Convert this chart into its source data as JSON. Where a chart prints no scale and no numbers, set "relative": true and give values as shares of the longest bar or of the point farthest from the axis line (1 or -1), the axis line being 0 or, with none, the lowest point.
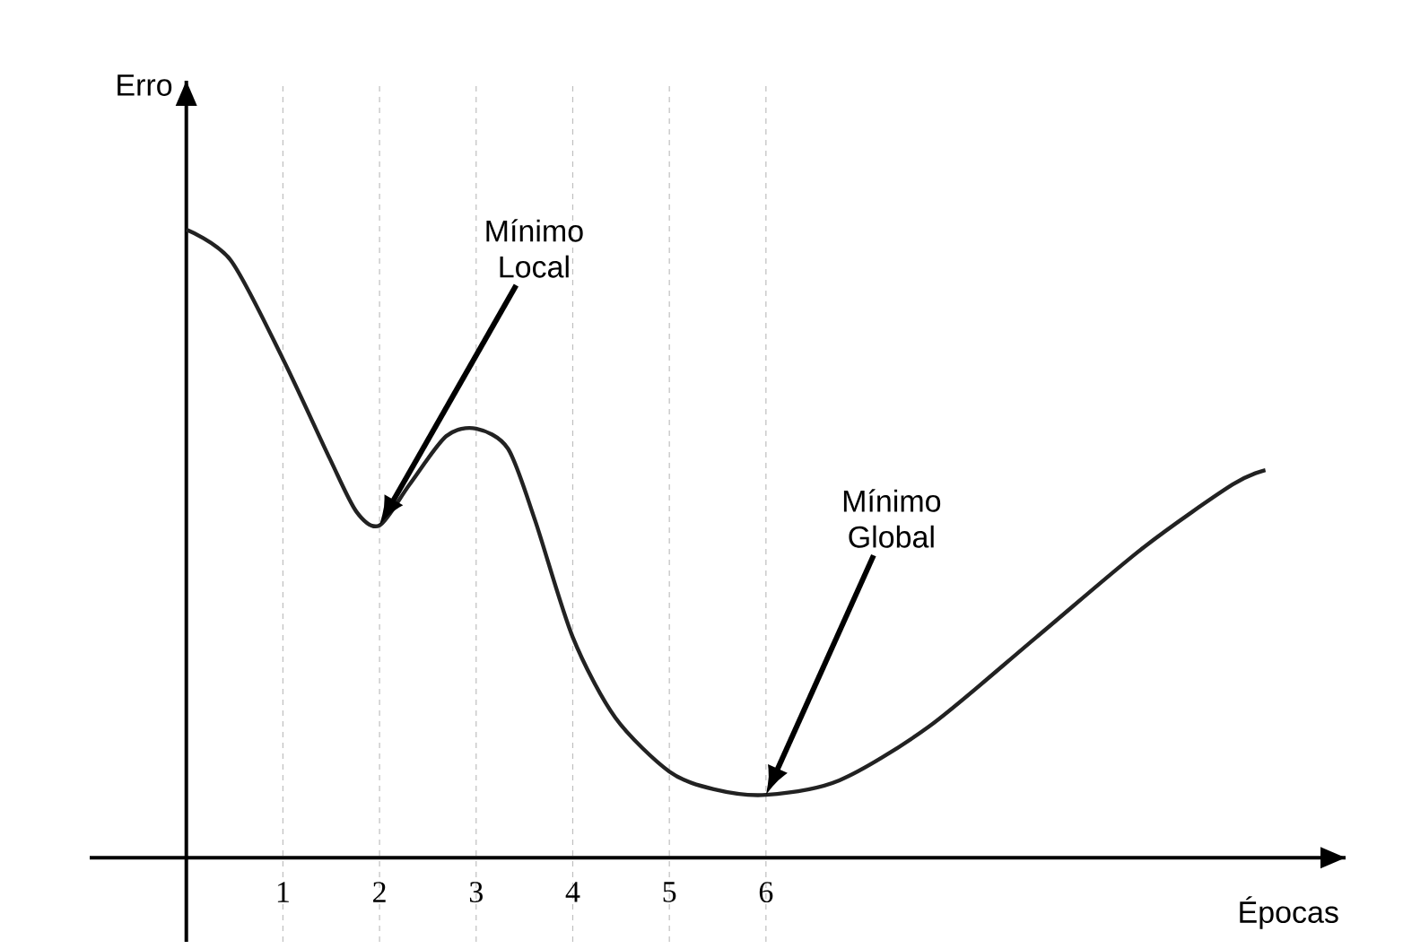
{
  "chart_data": {
    "type": "line",
    "relative": true,
    "xlabel": "Épocas",
    "ylabel": "Erro",
    "x": [
      0,
      0.46,
      1,
      1.48,
      1.76,
      2,
      2.31,
      2.69,
      3,
      3.33,
      3.61,
      4,
      4.44,
      5,
      5.46,
      6,
      6.76,
      7.69,
      8.8,
      9.91,
      10.83,
      11.17
    ],
    "values": [
      1.0,
      0.951,
      0.794,
      0.637,
      0.551,
      0.529,
      0.594,
      0.671,
      0.683,
      0.651,
      0.537,
      0.351,
      0.223,
      0.137,
      0.109,
      0.1,
      0.123,
      0.209,
      0.351,
      0.494,
      0.594,
      0.617
    ],
    "color": "#222222",
    "xlim": [
      -1,
      12
    ],
    "xticks": [
      1,
      2,
      3,
      4,
      5,
      6
    ],
    "grid": "x",
    "marker": "none",
    "line_style": "solid",
    "annotations": [
      "Mínimo Local",
      "Mínimo Global"
    ]
  }
}
